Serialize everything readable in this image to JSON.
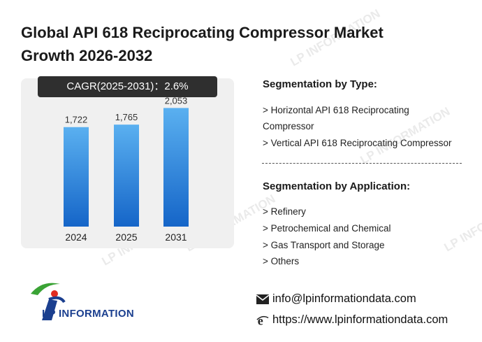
{
  "title_line1": "Global API 618 Reciprocating Compressor Market",
  "title_line2": "Growth 2026-2032",
  "cagr_label": "CAGR(2025-2031)：2.6%",
  "chart_data": {
    "type": "bar",
    "categories": [
      "2024",
      "2025",
      "2031"
    ],
    "values": [
      1722,
      1765,
      2053
    ],
    "value_labels": [
      "1,722",
      "1,765",
      "2,053"
    ],
    "title": "",
    "xlabel": "",
    "ylabel": "",
    "ylim": [
      0,
      2300
    ],
    "grid": false,
    "colors": {
      "bar_top": "#5ab0f0",
      "bar_bottom": "#1565c8"
    }
  },
  "seg_type": {
    "title": "Segmentation by Type:",
    "items": [
      "> Horizontal API 618 Reciprocating",
      "Compressor",
      "> Vertical API 618 Reciprocating Compressor"
    ]
  },
  "seg_app": {
    "title": "Segmentation by Application:",
    "items": [
      "> Refinery",
      "> Petrochemical and Chemical",
      "> Gas Transport and Storage",
      "> Others"
    ]
  },
  "contact": {
    "email": "info@lpinformationdata.com",
    "website": "https://www.lpinformationdata.com",
    "email_icon": "envelope-icon",
    "web_icon": "browser-e-icon"
  },
  "logo": {
    "text": "LP INFORMATION",
    "colors": {
      "blue": "#1b3f8f",
      "green": "#3aa335",
      "red": "#e02b20"
    }
  },
  "watermark_text": "LP INFORMATION"
}
